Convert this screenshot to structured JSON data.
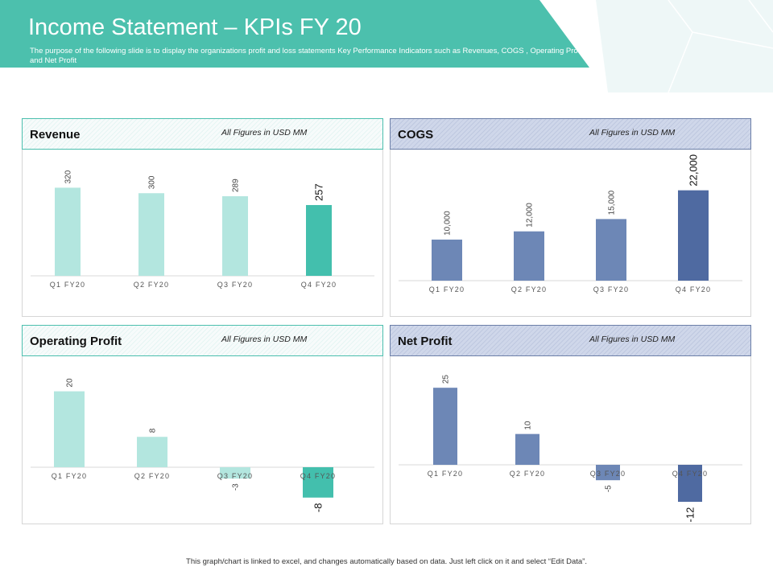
{
  "header": {
    "title": "Income Statement – KPIs FY 20",
    "subtitle": "The purpose of the following slide is to display the organizations profit and loss statements Key Performance Indicators such as Revenues, COGS , Operating Profit and Net Profit"
  },
  "panels": {
    "revenue": {
      "title": "Revenue",
      "note": "All Figures in USD MM"
    },
    "cogs": {
      "title": "COGS",
      "note": "All Figures in USD MM"
    },
    "operating_profit": {
      "title": "Operating Profit",
      "note": "All Figures in USD MM"
    },
    "net_profit": {
      "title": "Net Profit",
      "note": "All Figures in USD MM"
    }
  },
  "footer": {
    "text": "This graph/chart is linked to excel, and changes automatically based on data. Just left click on it and select “Edit Data”."
  },
  "colors": {
    "teal_header": "#4cc0ad",
    "teal_light": "#b3e6df",
    "teal_dark": "#43bfad",
    "blue_bar": "#6d87b6",
    "blue_dark": "#4f6aa1"
  },
  "chart_data": [
    {
      "id": "revenue",
      "type": "bar",
      "title": "Revenue",
      "categories": [
        "Q1 FY20",
        "Q2 FY20",
        "Q3 FY20",
        "Q4 FY20"
      ],
      "values": [
        320,
        300,
        289,
        257
      ],
      "labels": [
        "320",
        "300",
        "289",
        "257"
      ],
      "highlight_index": 3,
      "ylim": [
        0,
        400
      ],
      "unit": "USD MM"
    },
    {
      "id": "cogs",
      "type": "bar",
      "title": "COGS",
      "categories": [
        "Q1 FY20",
        "Q2 FY20",
        "Q3 FY20",
        "Q4 FY20"
      ],
      "values": [
        10000,
        12000,
        15000,
        22000
      ],
      "labels": [
        "10,000",
        "12,000",
        "15,000",
        "22,000"
      ],
      "highlight_index": 3,
      "ylim": [
        0,
        28000
      ],
      "unit": "USD MM"
    },
    {
      "id": "operating_profit",
      "type": "bar",
      "title": "Operating Profit",
      "categories": [
        "Q1 FY20",
        "Q2 FY20",
        "Q3 FY20",
        "Q4 FY20"
      ],
      "values": [
        20,
        8,
        -3,
        -8
      ],
      "labels": [
        "20",
        "8",
        "-3",
        "-8"
      ],
      "highlight_index": 3,
      "ylim": [
        -10,
        25
      ],
      "unit": "USD MM"
    },
    {
      "id": "net_profit",
      "type": "bar",
      "title": "Net Profit",
      "categories": [
        "Q1 FY20",
        "Q2 FY20",
        "Q3 FY20",
        "Q4 FY20"
      ],
      "values": [
        25,
        10,
        -5,
        -12
      ],
      "labels": [
        "25",
        "10",
        "-5",
        "-12"
      ],
      "highlight_index": 3,
      "ylim": [
        -15,
        30
      ],
      "unit": "USD MM"
    }
  ]
}
